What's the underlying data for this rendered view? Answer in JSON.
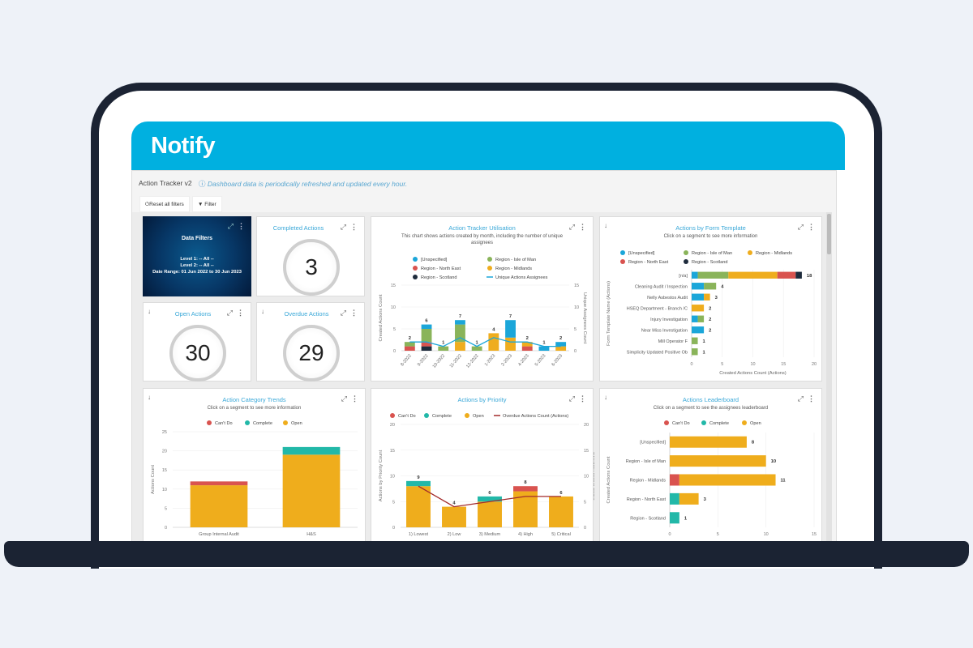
{
  "app": {
    "logo": "Notify",
    "title": "Action Tracker v2",
    "info": "Dashboard data is periodically refreshed and updated every hour.",
    "reset_label": "Reset all filters",
    "filter_label": "Filter"
  },
  "filters": {
    "title": "Data Filters",
    "level1": "Level 1: -- All --",
    "level2": "Level 2: -- All --",
    "date_range": "Date Range: 01 Jun 2022 to 30 Jun 2023"
  },
  "kpis": {
    "completed": {
      "title": "Completed Actions",
      "value": "3"
    },
    "open": {
      "title": "Open Actions",
      "value": "30"
    },
    "overdue": {
      "title": "Overdue Actions",
      "value": "29"
    }
  },
  "colors": {
    "unspecified": "#1ba6d9",
    "isle_of_man": "#8ab45a",
    "midlands": "#efad1e",
    "north_east": "#d9534f",
    "scotland": "#1e2b3c",
    "cant_do": "#d9534f",
    "complete": "#22b8a8",
    "open": "#efad1c",
    "overdue_line": "#a32a2a"
  },
  "chart_data": [
    {
      "id": "utilisation",
      "type": "bar",
      "title": "Action Tracker Utilisation",
      "subtitle": "This chart shows actions created by month, including the number of unique assignees",
      "categories": [
        "8-2022",
        "9-2022",
        "10-2022",
        "11-2022",
        "12-2022",
        "1-2023",
        "2-2023",
        "4-2023",
        "5-2023",
        "6-2023"
      ],
      "series": [
        {
          "name": "Region - Scotland",
          "color": "#1e2b3c",
          "values": [
            0,
            1,
            0,
            0,
            0,
            0,
            0,
            0,
            0,
            0
          ]
        },
        {
          "name": "Region - North East",
          "color": "#d9534f",
          "values": [
            1,
            1,
            0,
            0,
            0,
            0,
            0,
            1,
            0,
            0
          ]
        },
        {
          "name": "Region - Midlands",
          "color": "#efad1e",
          "values": [
            0,
            0,
            0,
            2,
            0,
            4,
            3,
            1,
            0,
            1
          ]
        },
        {
          "name": "Region - Isle of Man",
          "color": "#8ab45a",
          "values": [
            1,
            3,
            1,
            4,
            1,
            0,
            0,
            0,
            0,
            0
          ]
        },
        {
          "name": "[Unspecified]",
          "color": "#1ba6d9",
          "values": [
            0,
            1,
            0,
            1,
            0,
            0,
            4,
            0,
            1,
            1
          ]
        }
      ],
      "totals": [
        2,
        6,
        1,
        7,
        1,
        4,
        7,
        2,
        1,
        2
      ],
      "line": {
        "name": "Unique Actions Assignees",
        "color": "#1ba6d9",
        "values": [
          2,
          2,
          1,
          3,
          1,
          3,
          2,
          2,
          1,
          1
        ]
      },
      "legend": [
        "[Unspecified]",
        "Region - Isle of Man",
        "Region - Midlands",
        "Region - North East",
        "Region - Scotland",
        "Unique Actions Assignees"
      ],
      "ylabel": "Created Actions Count",
      "y2label": "Unique Assignees Count",
      "ylim": [
        0,
        15
      ],
      "yticks": [
        0,
        5,
        10,
        15
      ]
    },
    {
      "id": "form_template",
      "type": "bar",
      "orientation": "horizontal",
      "title": "Actions by Form Template",
      "subtitle": "Click on a segment to see more information",
      "categories": [
        "[n/a]",
        "Cleaning Audit / Inspection",
        "Nelly Asbestos Audit",
        "HSEQ Department - Branch /C",
        "Injury Investigation",
        "Near Miss Investigation",
        "Mill Operator F",
        "Simplicity Updated Positive Ob"
      ],
      "series": [
        {
          "name": "[Unspecified]",
          "color": "#1ba6d9",
          "values": [
            1,
            2,
            2,
            0,
            1,
            2,
            0,
            0
          ]
        },
        {
          "name": "Region - Isle of Man",
          "color": "#8ab45a",
          "values": [
            5,
            2,
            0,
            0,
            1,
            0,
            1,
            1
          ]
        },
        {
          "name": "Region - Midlands",
          "color": "#efad1e",
          "values": [
            8,
            0,
            1,
            2,
            0,
            0,
            0,
            0
          ]
        },
        {
          "name": "Region - North East",
          "color": "#d9534f",
          "values": [
            3,
            0,
            0,
            0,
            0,
            0,
            0,
            0
          ]
        },
        {
          "name": "Region - Scotland",
          "color": "#1e2b3c",
          "values": [
            1,
            0,
            0,
            0,
            0,
            0,
            0,
            0
          ]
        }
      ],
      "totals": [
        18,
        4,
        3,
        2,
        2,
        2,
        1,
        1
      ],
      "legend": [
        "[Unspecified]",
        "Region - Isle of Man",
        "Region - Midlands",
        "Region - North East",
        "Region - Scotland"
      ],
      "xlabel": "Created Actions Count (Actions)",
      "ylabel": "Form Template Name (Actions)",
      "xlim": [
        0,
        20
      ],
      "xticks": [
        0,
        5,
        10,
        15,
        20
      ]
    },
    {
      "id": "category_trends",
      "type": "bar",
      "title": "Action Category Trends",
      "subtitle": "Click on a segment to see more information",
      "categories": [
        "Group Internal Audit",
        "H&S"
      ],
      "series": [
        {
          "name": "Open",
          "color": "#efad1c",
          "values": [
            11,
            19
          ]
        },
        {
          "name": "Complete",
          "color": "#22b8a8",
          "values": [
            0,
            2
          ]
        },
        {
          "name": "Can't Do",
          "color": "#d9534f",
          "values": [
            1,
            0
          ]
        }
      ],
      "legend": [
        "Can't Do",
        "Complete",
        "Open"
      ],
      "ylabel": "Actions Count",
      "ylim": [
        0,
        25
      ],
      "yticks": [
        0,
        5,
        10,
        15,
        20,
        25
      ]
    },
    {
      "id": "priority",
      "type": "bar",
      "title": "Actions by Priority",
      "categories": [
        "1) Lowest",
        "2) Low",
        "3) Medium",
        "4) High",
        "5) Critical"
      ],
      "series": [
        {
          "name": "Open",
          "color": "#efad1c",
          "values": [
            8,
            4,
            5,
            7,
            6
          ]
        },
        {
          "name": "Complete",
          "color": "#22b8a8",
          "values": [
            1,
            0,
            1,
            0,
            0
          ]
        },
        {
          "name": "Can't Do",
          "color": "#d9534f",
          "values": [
            0,
            0,
            0,
            1,
            0
          ]
        }
      ],
      "totals": [
        9,
        4,
        6,
        8,
        6
      ],
      "line": {
        "name": "Overdue Actions Count (Actions)",
        "color": "#a32a2a",
        "values": [
          8,
          4,
          5,
          6,
          6
        ]
      },
      "legend": [
        "Can't Do",
        "Complete",
        "Open",
        "Overdue Actions Count (Actions)"
      ],
      "ylabel": "Actions by Priority Count",
      "y2label": "Overdue Actions Count",
      "ylim": [
        0,
        20
      ],
      "yticks": [
        0,
        5,
        10,
        15,
        20
      ]
    },
    {
      "id": "leaderboard",
      "type": "bar",
      "orientation": "horizontal",
      "title": "Actions Leaderboard",
      "subtitle": "Click on a segment to see the assignees leaderboard",
      "categories": [
        "[Unspecified]",
        "Region - Isle of Man",
        "Region - Midlands",
        "Region - North East",
        "Region - Scotland"
      ],
      "series": [
        {
          "name": "Can't Do",
          "color": "#d9534f",
          "values": [
            0,
            0,
            1,
            0,
            0
          ]
        },
        {
          "name": "Complete",
          "color": "#22b8a8",
          "values": [
            0,
            0,
            0,
            1,
            1
          ]
        },
        {
          "name": "Open",
          "color": "#efad1c",
          "values": [
            8,
            10,
            10,
            2,
            0
          ]
        }
      ],
      "totals": [
        8,
        10,
        11,
        3,
        1
      ],
      "legend": [
        "Can't Do",
        "Complete",
        "Open"
      ],
      "ylabel": "Created Actions Count",
      "xlim": [
        0,
        15
      ],
      "xticks": [
        0,
        5,
        10,
        15
      ]
    }
  ]
}
